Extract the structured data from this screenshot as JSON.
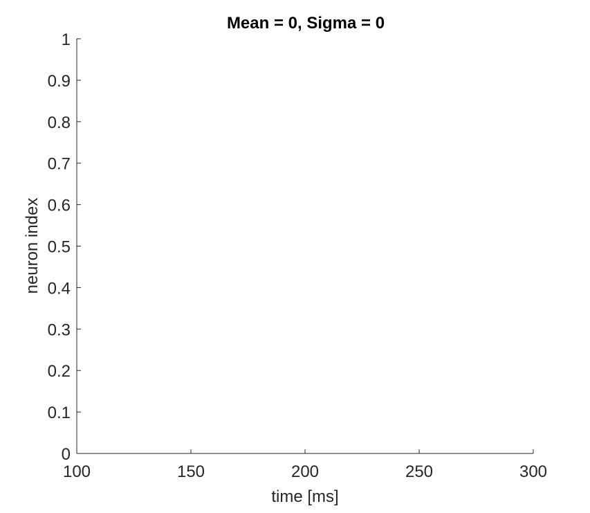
{
  "chart_data": {
    "type": "scatter",
    "title": "Mean = 0, Sigma = 0",
    "xlabel": "time [ms]",
    "ylabel": "neuron index",
    "xlim": [
      100,
      300
    ],
    "ylim": [
      0,
      1
    ],
    "xticks": [
      100,
      150,
      200,
      250,
      300
    ],
    "xtick_labels": [
      "100",
      "150",
      "200",
      "250",
      "300"
    ],
    "yticks": [
      0,
      0.1,
      0.2,
      0.3,
      0.4,
      0.5,
      0.6,
      0.7,
      0.8,
      0.9,
      1
    ],
    "ytick_labels": [
      "0",
      "0.1",
      "0.2",
      "0.3",
      "0.4",
      "0.5",
      "0.6",
      "0.7",
      "0.8",
      "0.9",
      "1"
    ],
    "grid": false,
    "box": false,
    "series": [
      {
        "x": [],
        "y": []
      }
    ],
    "colors": {
      "axis": "#262626",
      "title": "#000000",
      "background": "#ffffff"
    }
  }
}
